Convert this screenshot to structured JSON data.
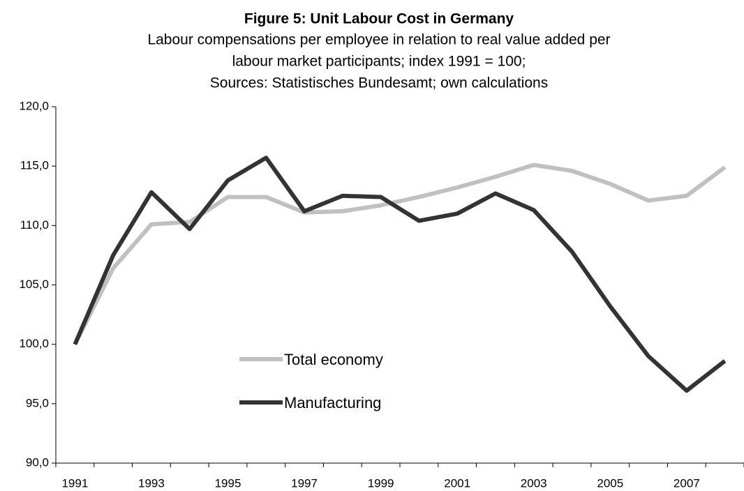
{
  "chart_data": {
    "type": "line",
    "title": "Figure 5: Unit Labour Cost in Germany",
    "subtitle": [
      "Labour compensations per employee in relation to real value added per",
      "labour market participants; index 1991 = 100;",
      "Sources: Statistisches Bundesamt; own calculations"
    ],
    "categories": [
      "1991",
      null,
      "1993",
      null,
      "1995",
      null,
      "1997",
      null,
      "1999",
      null,
      "2001",
      null,
      "2003",
      null,
      "2005",
      null,
      "2007",
      null
    ],
    "series": [
      {
        "name": "Total economy",
        "color": "#c0c0c0",
        "values": [
          100,
          106.4,
          110.1,
          110.3,
          112.4,
          112.4,
          111.1,
          111.2,
          111.7,
          112.4,
          113.2,
          114.1,
          115.1,
          114.6,
          113.5,
          112.1,
          112.5,
          114.9
        ]
      },
      {
        "name": "Manufacturing",
        "color": "#333333",
        "values": [
          100,
          107.5,
          112.8,
          109.7,
          113.8,
          115.7,
          111.2,
          112.5,
          112.4,
          110.4,
          111.0,
          112.7,
          111.3,
          107.8,
          103.2,
          99.0,
          96.1,
          98.6
        ]
      }
    ],
    "ylim": [
      90,
      120
    ],
    "yticks": [
      {
        "value": 90,
        "label": "90,0"
      },
      {
        "value": 95,
        "label": "95,0"
      },
      {
        "value": 100,
        "label": "100,0"
      },
      {
        "value": 105,
        "label": "105,0"
      },
      {
        "value": 110,
        "label": "110,0"
      },
      {
        "value": 115,
        "label": "115,0"
      },
      {
        "value": 120,
        "label": "120,0"
      }
    ],
    "grid": false,
    "legend": "lower center"
  }
}
